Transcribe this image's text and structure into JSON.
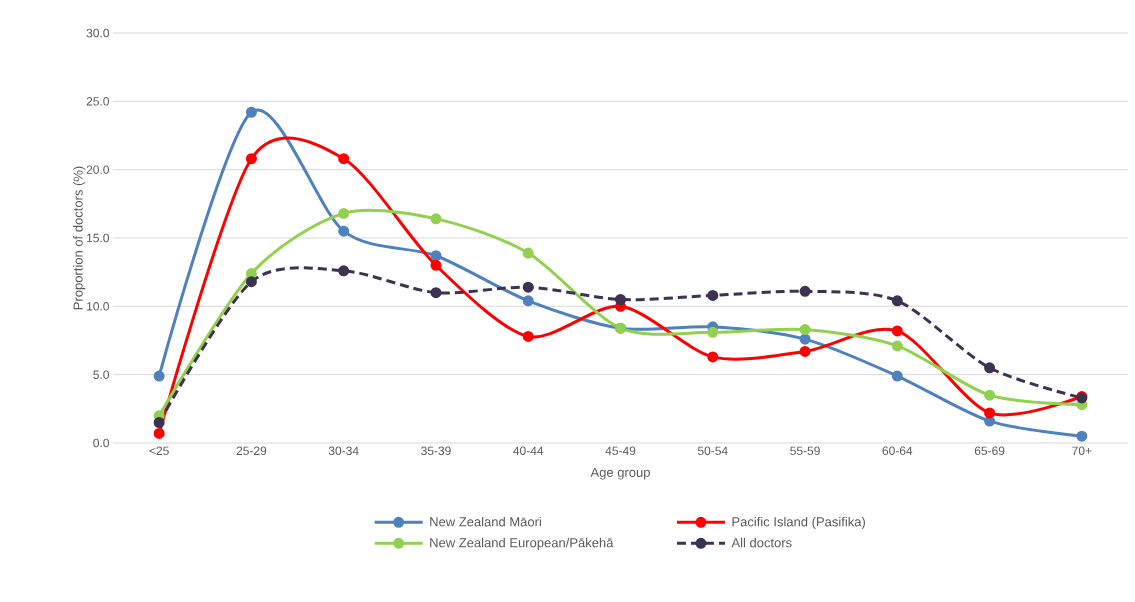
{
  "chart_data": {
    "type": "line",
    "xlabel": "Age group",
    "ylabel": "Proportion of doctors (%)",
    "categories": [
      "<25",
      "25-29",
      "30-34",
      "35-39",
      "40-44",
      "45-49",
      "50-54",
      "55-59",
      "60-64",
      "65-69",
      "70+"
    ],
    "series": [
      {
        "name": "New Zealand Māori",
        "color": "#4f81bd",
        "values": [
          4.9,
          24.2,
          15.5,
          13.7,
          10.4,
          8.4,
          8.5,
          7.6,
          4.9,
          1.6,
          0.5
        ]
      },
      {
        "name": "Pacific Island (Pasifika)",
        "color": "#ff0000",
        "values": [
          0.7,
          20.8,
          20.8,
          13.0,
          7.8,
          10.0,
          6.3,
          6.7,
          8.2,
          2.2,
          3.4
        ]
      },
      {
        "name": "New Zealand European/Pākehā",
        "color": "#92d050",
        "values": [
          2.0,
          12.4,
          16.8,
          16.4,
          13.9,
          8.4,
          8.1,
          8.3,
          7.1,
          3.5,
          2.8
        ]
      },
      {
        "name": "All doctors",
        "color": "#3f3151",
        "line_style": "dashed",
        "values": [
          1.5,
          11.8,
          12.6,
          11.0,
          11.4,
          10.5,
          10.8,
          11.1,
          10.4,
          5.5,
          3.3
        ]
      }
    ],
    "ylim": [
      0,
      30
    ],
    "yticks": [
      {
        "value": 0,
        "label": "0.0"
      },
      {
        "value": 5,
        "label": "5.0"
      },
      {
        "value": 10,
        "label": "10.0"
      },
      {
        "value": 15,
        "label": "15.0"
      },
      {
        "value": 20,
        "label": "20.0"
      },
      {
        "value": 25,
        "label": "25.0"
      },
      {
        "value": 30,
        "label": "30.0"
      }
    ],
    "grid": "y",
    "legend": "bottom",
    "marker": "circle",
    "line_style": "solid"
  }
}
